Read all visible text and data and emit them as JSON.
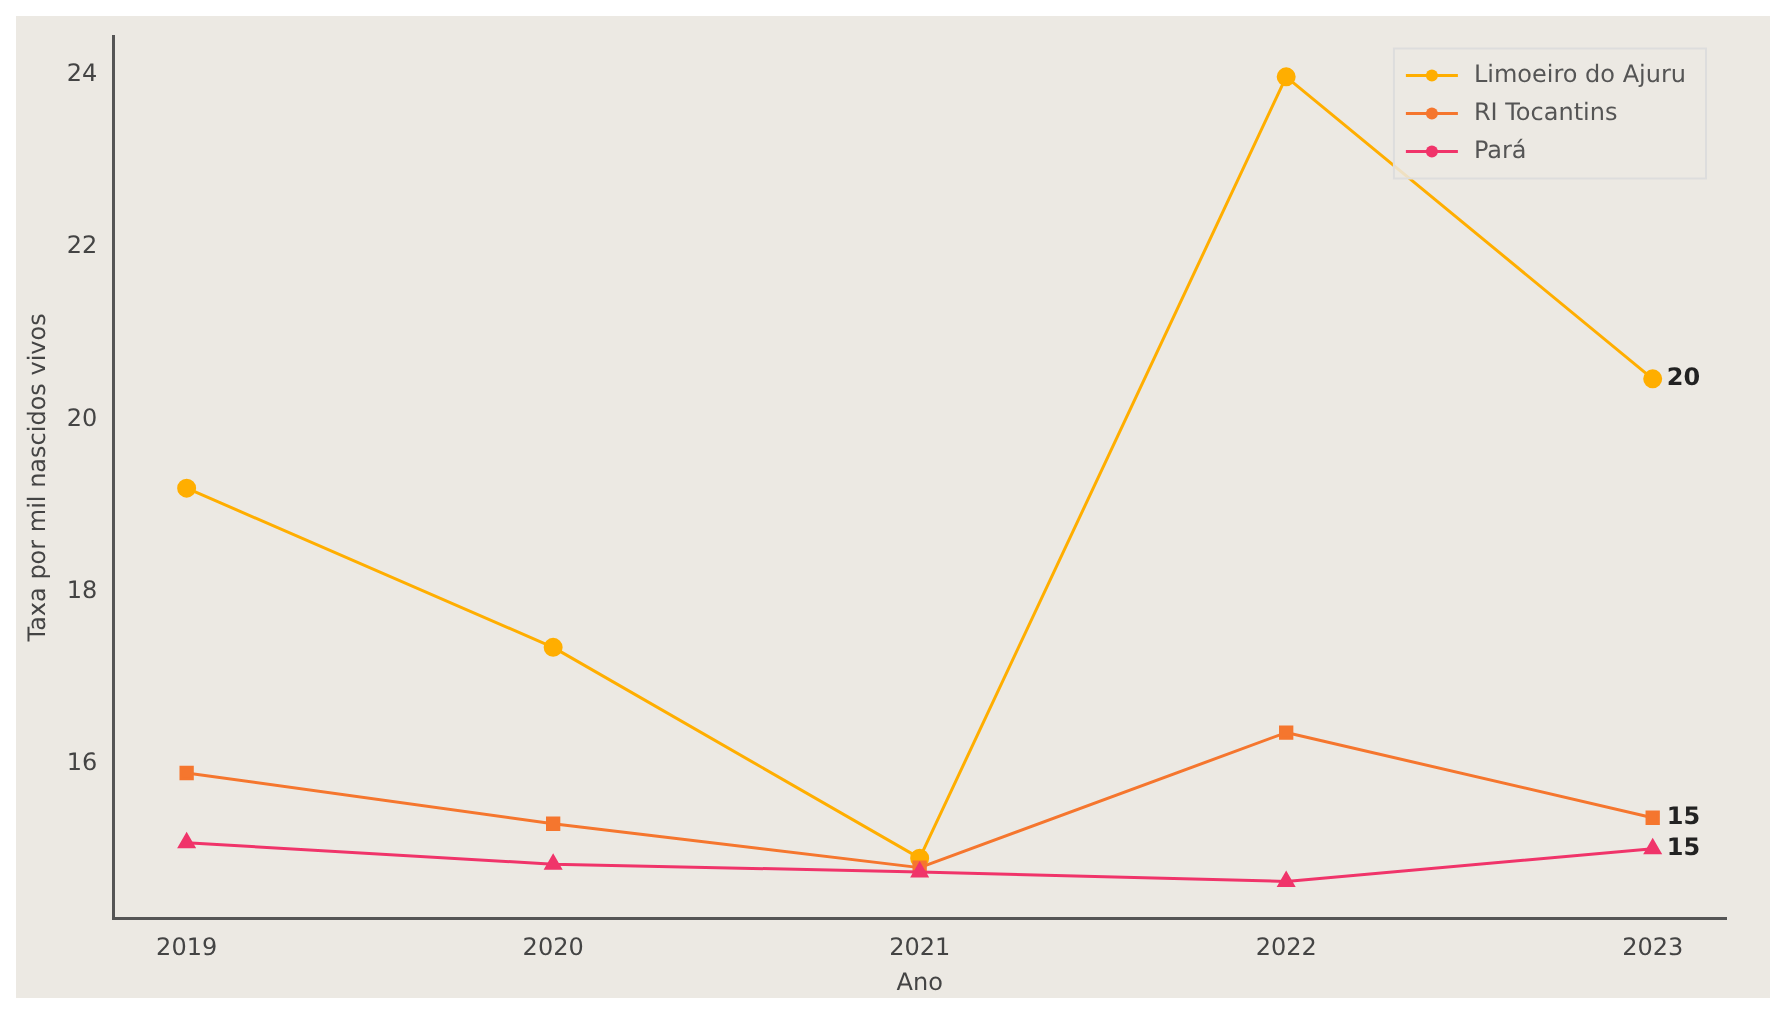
{
  "chart_data": {
    "type": "line",
    "xlabel": "Ano",
    "ylabel": "Taxa por mil nascidos vivos",
    "x": [
      2019,
      2020,
      2021,
      2022,
      2023
    ],
    "xlim": [
      2018.8,
      2023.2
    ],
    "xticks": [
      2019,
      2020,
      2021,
      2022,
      2023
    ],
    "ylim": [
      14.2,
      24.45
    ],
    "yticks": [
      16,
      18,
      20,
      22,
      24
    ],
    "grid": false,
    "legend": "top right",
    "line_style": "solid",
    "series": [
      {
        "name": "Limoeiro do Ajuru",
        "color": "#ffae00",
        "marker": "circle",
        "values": [
          19.2,
          17.35,
          14.9,
          23.98,
          20.47
        ],
        "value_labels": [
          null,
          null,
          null,
          null,
          "20"
        ]
      },
      {
        "name": "RI Tocantins",
        "color": "#f5762e",
        "marker": "square",
        "values": [
          15.89,
          15.3,
          14.79,
          16.36,
          15.37
        ],
        "value_labels": [
          null,
          null,
          null,
          null,
          "15"
        ]
      },
      {
        "name": "Pará",
        "color": "#f0346a",
        "marker": "triangle",
        "values": [
          15.08,
          14.83,
          14.74,
          14.63,
          15.01
        ],
        "value_labels": [
          null,
          null,
          null,
          null,
          "15"
        ]
      }
    ]
  }
}
